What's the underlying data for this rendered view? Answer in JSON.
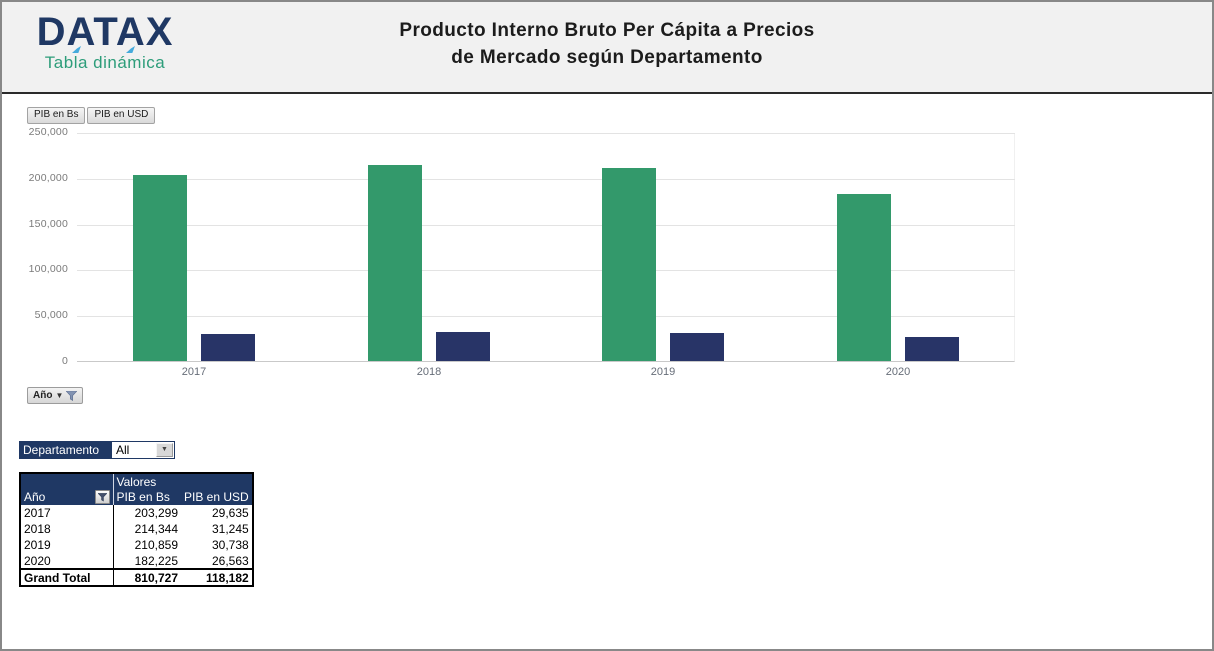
{
  "header": {
    "logo_name": "DATAX",
    "logo_subtitle": "Tabla dinámica",
    "title_line1": "Producto Interno Bruto Per Cápita a Precios",
    "title_line2": "de Mercado según Departamento"
  },
  "chart_data": {
    "type": "bar",
    "title": "Producto Interno Bruto Per Cápita a Precios de Mercado según Departamento",
    "categories": [
      "2017",
      "2018",
      "2019",
      "2020"
    ],
    "series": [
      {
        "name": "PIB en Bs",
        "color": "#33996B",
        "values": [
          203299,
          214344,
          210859,
          182225
        ]
      },
      {
        "name": "PIB en USD",
        "color": "#283467",
        "values": [
          29635,
          31245,
          30738,
          26563
        ]
      }
    ],
    "xlabel": "",
    "ylabel": "",
    "ylim": [
      0,
      250000
    ],
    "ytick_values": [
      0,
      50000,
      100000,
      150000,
      200000,
      250000
    ],
    "ytick_labels": [
      "0",
      "50,000",
      "100,000",
      "150,000",
      "200,000",
      "250,000"
    ],
    "grid": true,
    "legend_position": "none",
    "field_buttons_note": "pivot chart value field buttons top-left, axis field button bottom-left",
    "axis_field": "Año"
  },
  "slicer": {
    "label": "Departamento",
    "value": "All"
  },
  "pivot": {
    "valores_label": "Valores",
    "row_header": "Año",
    "col_headers": [
      "PIB en Bs",
      "PIB en USD"
    ],
    "rows": [
      {
        "year": "2017",
        "bs": "203,299",
        "usd": "29,635"
      },
      {
        "year": "2018",
        "bs": "214,344",
        "usd": "31,245"
      },
      {
        "year": "2019",
        "bs": "210,859",
        "usd": "30,738"
      },
      {
        "year": "2020",
        "bs": "182,225",
        "usd": "26,563"
      }
    ],
    "total": {
      "label": "Grand Total",
      "bs": "810,727",
      "usd": "118,182"
    }
  },
  "colors": {
    "brand_navy": "#1F3864",
    "brand_teal": "#2D9D7A",
    "brand_accent_blue": "#45AADC",
    "bar_green": "#33996B",
    "bar_navy": "#283467",
    "header_bg": "#f1f1f1"
  }
}
